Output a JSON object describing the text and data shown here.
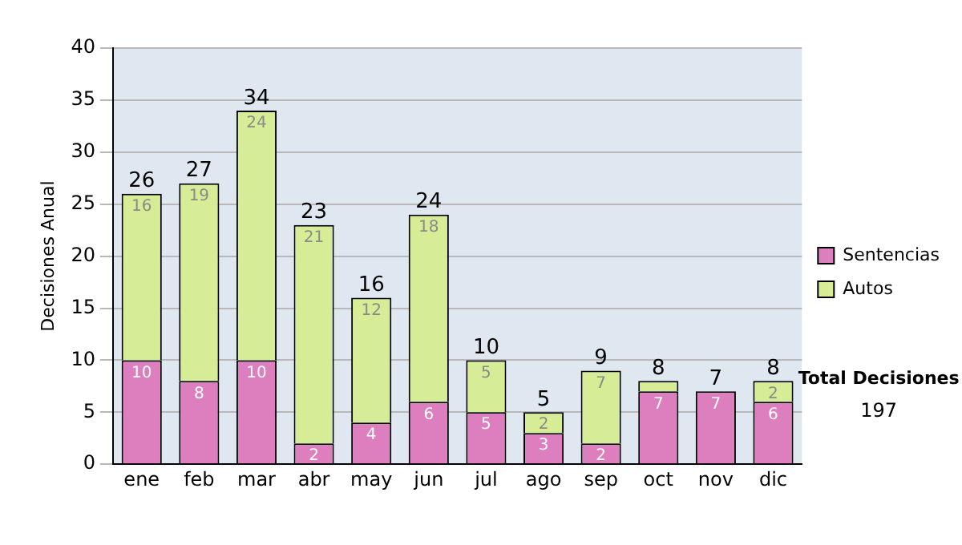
{
  "chart_data": {
    "type": "bar",
    "stacked": true,
    "ylabel": "Decisiones Anual",
    "categories": [
      "ene",
      "feb",
      "mar",
      "abr",
      "may",
      "jun",
      "jul",
      "ago",
      "sep",
      "oct",
      "nov",
      "dic"
    ],
    "series": [
      {
        "name": "Sentencias",
        "color": "#dd7fbf",
        "values": [
          10,
          8,
          10,
          2,
          4,
          6,
          5,
          3,
          2,
          7,
          7,
          6
        ],
        "value_labels": [
          "10",
          "8",
          "10",
          "2",
          "4",
          "6",
          "5",
          "3",
          "2",
          "7",
          "7",
          "6"
        ]
      },
      {
        "name": "Autos",
        "color": "#d6ec96",
        "values": [
          16,
          19,
          24,
          21,
          12,
          18,
          5,
          2,
          7,
          1,
          0,
          2
        ],
        "value_labels": [
          "16",
          "19",
          "24",
          "21",
          "12",
          "18",
          "5",
          "2",
          "7",
          null,
          null,
          "2"
        ]
      }
    ],
    "totals": [
      "26",
      "27",
      "34",
      "23",
      "16",
      "24",
      "10",
      "5",
      "9",
      "8",
      "7",
      "8"
    ],
    "ylim": [
      0,
      40
    ],
    "yticks": [
      0,
      5,
      10,
      15,
      20,
      25,
      30,
      35,
      40
    ],
    "grid": "y",
    "legend": "right",
    "annotations": [
      "Total Decisiones",
      "197"
    ]
  }
}
